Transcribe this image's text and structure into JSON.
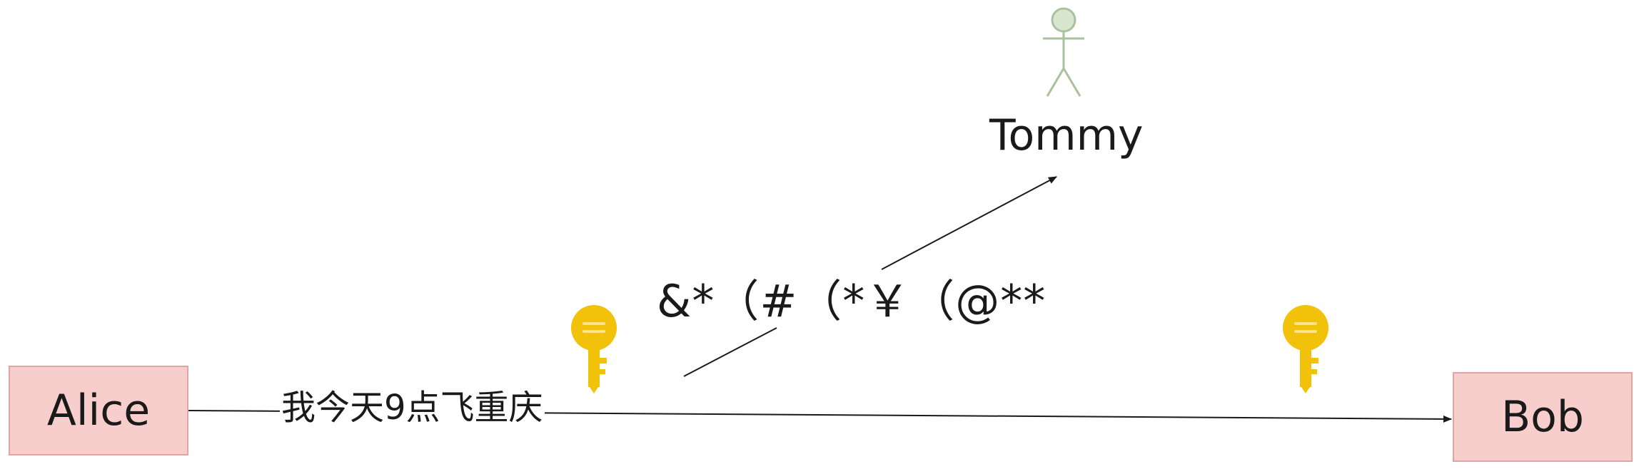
{
  "nodes": {
    "alice": "Alice",
    "bob": "Bob",
    "tommy": "Tommy"
  },
  "messages": {
    "plaintext": "我今天9点飞重庆",
    "ciphertext": "&*（#（*￥（@**"
  },
  "icons": {
    "alice_key": "key-icon",
    "bob_key": "key-icon",
    "tommy_actor": "stick-figure-actor-icon"
  },
  "colors": {
    "node_fill": "#f8cecc",
    "node_border": "#e3a3a3",
    "key": "#f2c20a",
    "actor": "#a9c29e",
    "actor_fill": "#d8e6cf",
    "edge": "#1a1a1a"
  }
}
